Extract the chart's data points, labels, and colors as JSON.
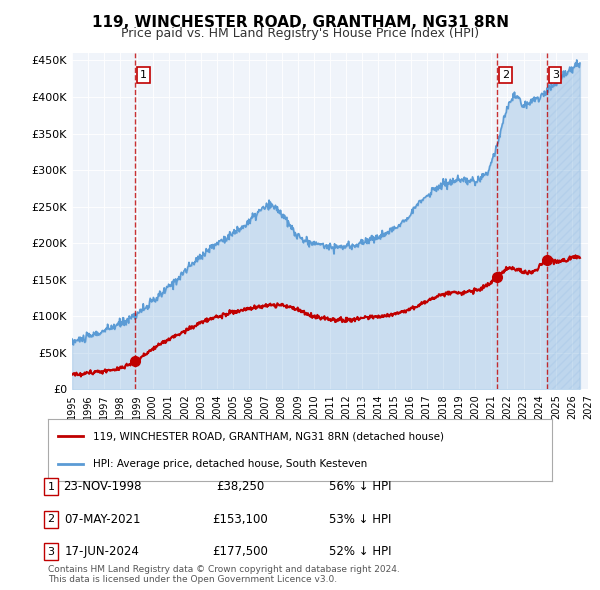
{
  "title": "119, WINCHESTER ROAD, GRANTHAM, NG31 8RN",
  "subtitle": "Price paid vs. HM Land Registry's House Price Index (HPI)",
  "hpi_color": "#5b9bd5",
  "price_color": "#c00000",
  "sale_marker_color": "#c00000",
  "vline_color": "#c00000",
  "background_color": "#f0f4fa",
  "plot_bg": "#f0f4fa",
  "ylim": [
    0,
    460000
  ],
  "yticks": [
    0,
    50000,
    100000,
    150000,
    200000,
    250000,
    300000,
    350000,
    400000,
    450000
  ],
  "ylabel_format": "£{0}K",
  "sales": [
    {
      "date_num": 1998.9,
      "price": 38250,
      "label": "1"
    },
    {
      "date_num": 2021.35,
      "price": 153100,
      "label": "2"
    },
    {
      "date_num": 2024.45,
      "price": 177500,
      "label": "3"
    }
  ],
  "legend_house_label": "119, WINCHESTER ROAD, GRANTHAM, NG31 8RN (detached house)",
  "legend_hpi_label": "HPI: Average price, detached house, South Kesteven",
  "table_rows": [
    {
      "num": "1",
      "date": "23-NOV-1998",
      "price": "£38,250",
      "pct": "56% ↓ HPI"
    },
    {
      "num": "2",
      "date": "07-MAY-2021",
      "price": "£153,100",
      "pct": "53% ↓ HPI"
    },
    {
      "num": "3",
      "date": "17-JUN-2024",
      "price": "£177,500",
      "pct": "52% ↓ HPI"
    }
  ],
  "footnote": "Contains HM Land Registry data © Crown copyright and database right 2024.\nThis data is licensed under the Open Government Licence v3.0.",
  "xmin": 1995,
  "xmax": 2027,
  "xticks": [
    1995,
    1996,
    1997,
    1998,
    1999,
    2000,
    2001,
    2002,
    2003,
    2004,
    2005,
    2006,
    2007,
    2008,
    2009,
    2010,
    2011,
    2012,
    2013,
    2014,
    2015,
    2016,
    2017,
    2018,
    2019,
    2020,
    2021,
    2022,
    2023,
    2024,
    2025,
    2026,
    2027
  ]
}
